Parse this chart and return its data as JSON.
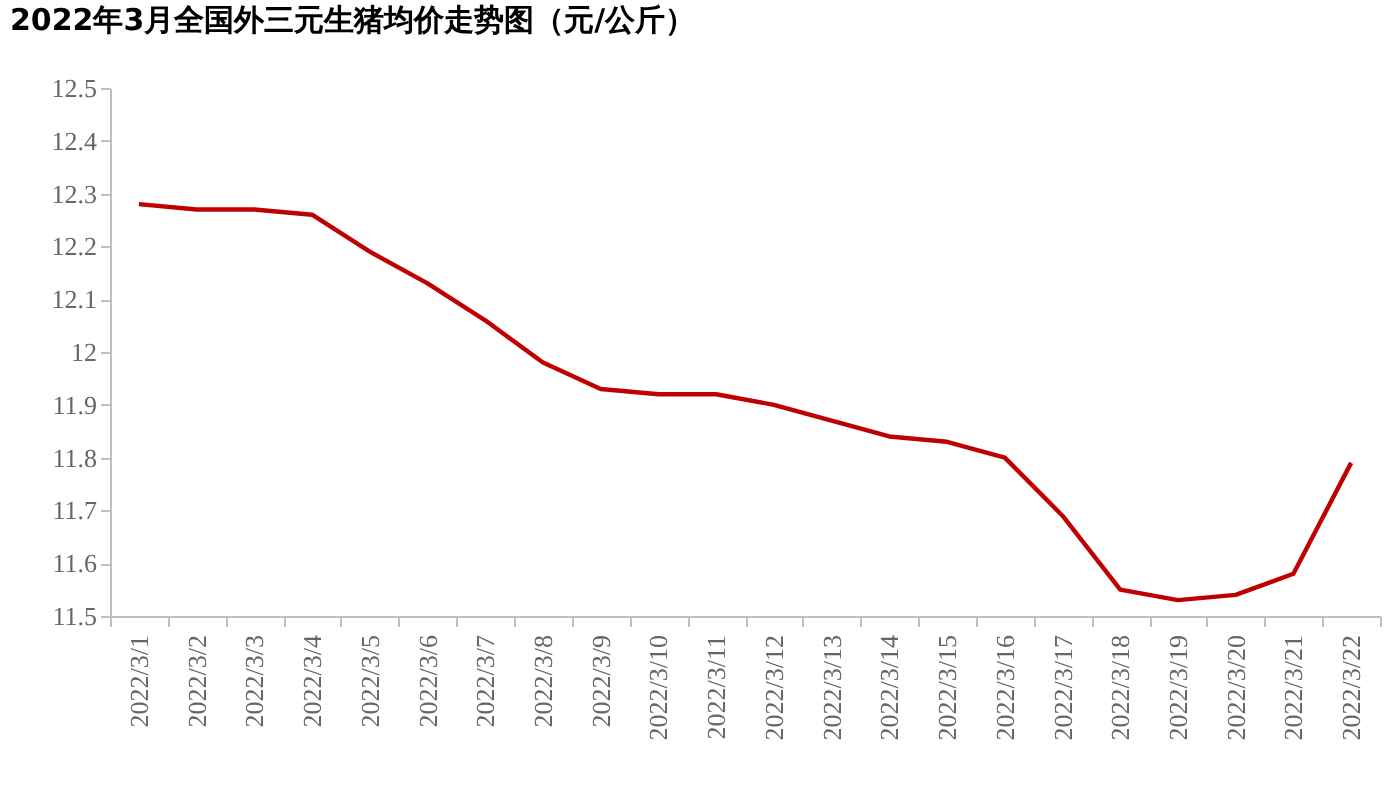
{
  "chart_data": {
    "type": "line",
    "title": "2022年3月全国外三元生猪均价走势图（元/公斤）",
    "categories": [
      "2022/3/1",
      "2022/3/2",
      "2022/3/3",
      "2022/3/4",
      "2022/3/5",
      "2022/3/6",
      "2022/3/7",
      "2022/3/8",
      "2022/3/9",
      "2022/3/10",
      "2022/3/11",
      "2022/3/12",
      "2022/3/13",
      "2022/3/14",
      "2022/3/15",
      "2022/3/16",
      "2022/3/17",
      "2022/3/18",
      "2022/3/19",
      "2022/3/20",
      "2022/3/21",
      "2022/3/22"
    ],
    "series": [
      {
        "color": "#c00000",
        "values": [
          12.28,
          12.27,
          12.27,
          12.26,
          12.19,
          12.13,
          12.06,
          11.98,
          11.93,
          11.92,
          11.92,
          11.9,
          11.87,
          11.84,
          11.83,
          11.8,
          11.69,
          11.55,
          11.53,
          11.54,
          11.58,
          11.79
        ]
      }
    ],
    "ylim": [
      11.5,
      12.5
    ],
    "yticks": [
      11.5,
      11.6,
      11.7,
      11.8,
      11.9,
      12,
      12.1,
      12.2,
      12.3,
      12.4,
      12.5
    ],
    "grid": false,
    "legend": false,
    "marker": "none",
    "line_style": "solid"
  }
}
